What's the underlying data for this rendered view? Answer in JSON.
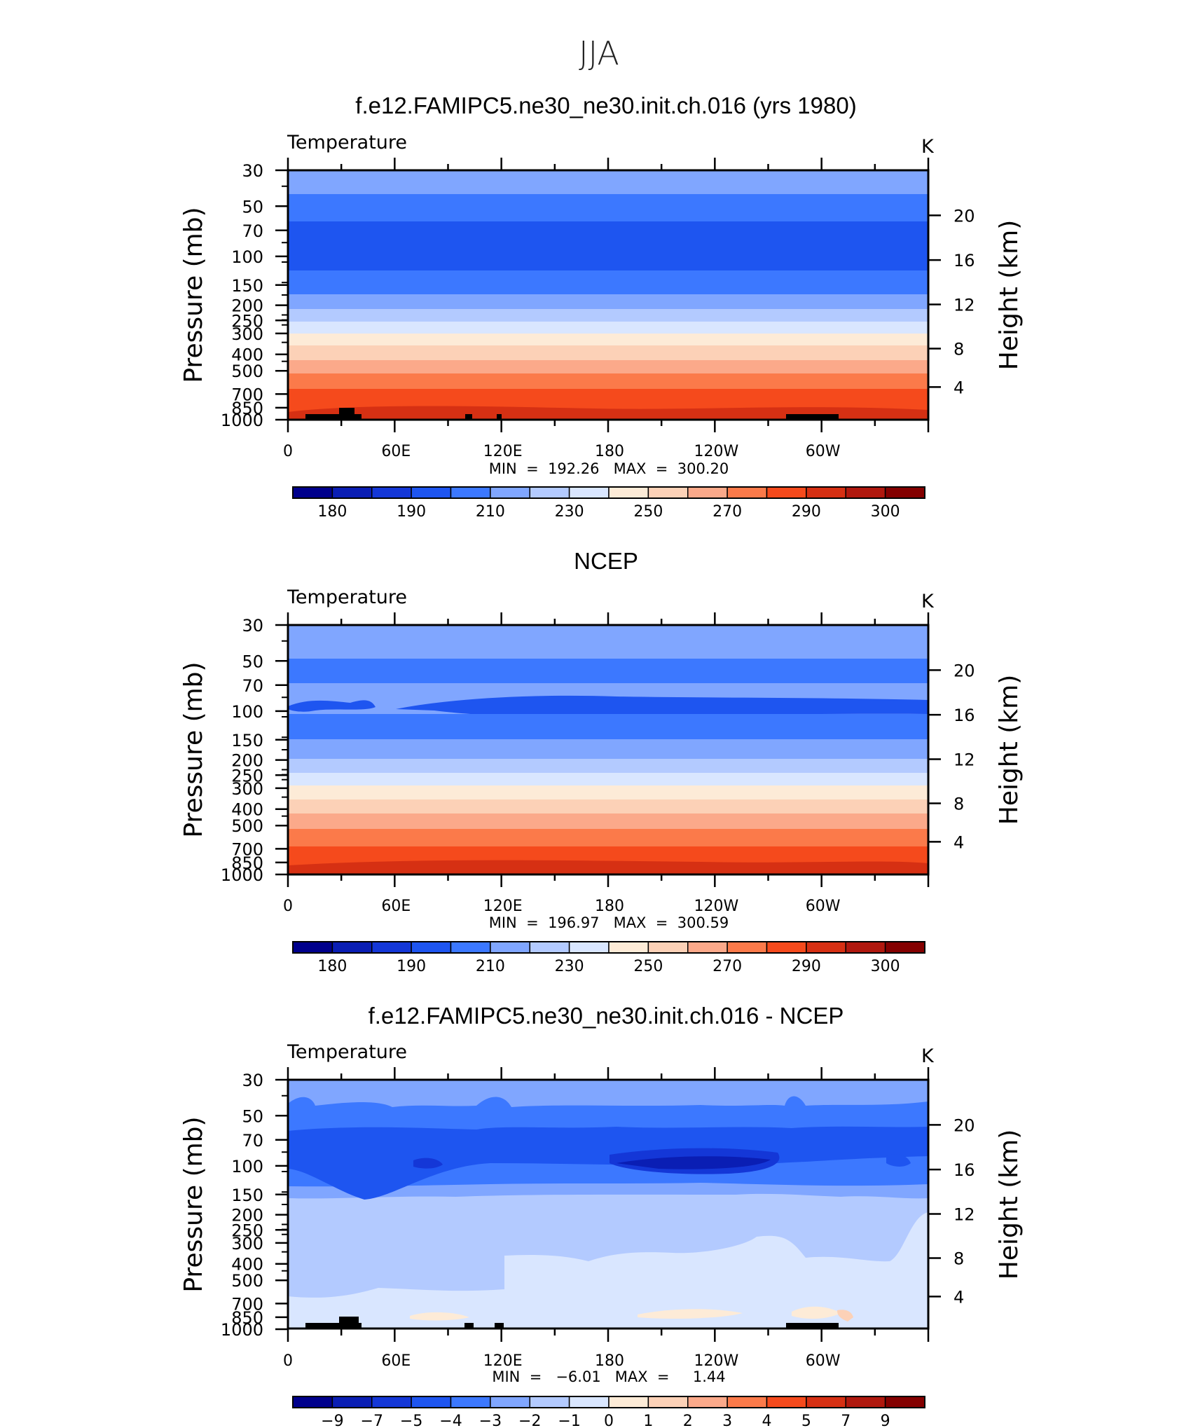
{
  "page_title": "JJA",
  "chart_data": [
    {
      "type": "contour",
      "title": "f.e12.FAMIPC5.ne30_ne30.init.ch.016 (yrs 1980)",
      "variable": "Temperature",
      "units": "K",
      "ylabel": "Pressure (mb)",
      "ylabel2": "Height (km)",
      "y_ticks": [
        "30",
        "50",
        "70",
        "100",
        "150",
        "200",
        "250",
        "300",
        "400",
        "500",
        "700",
        "850",
        "1000"
      ],
      "y2_ticks": [
        "20",
        "16",
        "12",
        "8",
        "4"
      ],
      "x_ticks": [
        "0",
        "60E",
        "120E",
        "180",
        "120W",
        "60W"
      ],
      "stats_label": "MIN  =  192.26   MAX  =  300.20",
      "min": 192.26,
      "max": 300.2,
      "colorbar_labels": [
        "180",
        "190",
        "210",
        "230",
        "250",
        "270",
        "290",
        "300"
      ]
    },
    {
      "type": "contour",
      "title": "NCEP",
      "variable": "Temperature",
      "units": "K",
      "ylabel": "Pressure (mb)",
      "ylabel2": "Height (km)",
      "y_ticks": [
        "30",
        "50",
        "70",
        "100",
        "150",
        "200",
        "250",
        "300",
        "400",
        "500",
        "700",
        "850",
        "1000"
      ],
      "y2_ticks": [
        "20",
        "16",
        "12",
        "8",
        "4"
      ],
      "x_ticks": [
        "0",
        "60E",
        "120E",
        "180",
        "120W",
        "60W"
      ],
      "stats_label": "MIN  =  196.97   MAX  =  300.59",
      "min": 196.97,
      "max": 300.59,
      "colorbar_labels": [
        "180",
        "190",
        "210",
        "230",
        "250",
        "270",
        "290",
        "300"
      ]
    },
    {
      "type": "contour",
      "title": "f.e12.FAMIPC5.ne30_ne30.init.ch.016 - NCEP",
      "variable": "Temperature",
      "units": "K",
      "ylabel": "Pressure (mb)",
      "ylabel2": "Height (km)",
      "y_ticks": [
        "30",
        "50",
        "70",
        "100",
        "150",
        "200",
        "250",
        "300",
        "400",
        "500",
        "700",
        "850",
        "1000"
      ],
      "y2_ticks": [
        "20",
        "16",
        "12",
        "8",
        "4"
      ],
      "x_ticks": [
        "0",
        "60E",
        "120E",
        "180",
        "120W",
        "60W"
      ],
      "stats_label": "MIN  =   −6.01   MAX  =     1.44",
      "min": -6.01,
      "max": 1.44,
      "colorbar_labels": [
        "−9",
        "−7",
        "−5",
        "−4",
        "−3",
        "−2",
        "−1",
        "0",
        "1",
        "2",
        "3",
        "4",
        "5",
        "7",
        "9"
      ]
    }
  ],
  "colors": {
    "palette": [
      "#00008c",
      "#0a1eb4",
      "#1437d7",
      "#1e55f0",
      "#3c78ff",
      "#80a6ff",
      "#b3caff",
      "#d9e6ff",
      "#fdebd7",
      "#fcd1b7",
      "#fba98a",
      "#fb7a4a",
      "#f54a1c",
      "#d63013",
      "#b0180e",
      "#840000"
    ],
    "panel3_palette": [
      "#00008c",
      "#0a1eb4",
      "#1437d7",
      "#1e55f0",
      "#3c78ff",
      "#80a6ff",
      "#b3caff",
      "#d9e6ff",
      "#fdebd7",
      "#fcd1b7",
      "#fba98a",
      "#fb7a4a",
      "#f54a1c",
      "#d63013",
      "#b0180e",
      "#840000"
    ]
  }
}
